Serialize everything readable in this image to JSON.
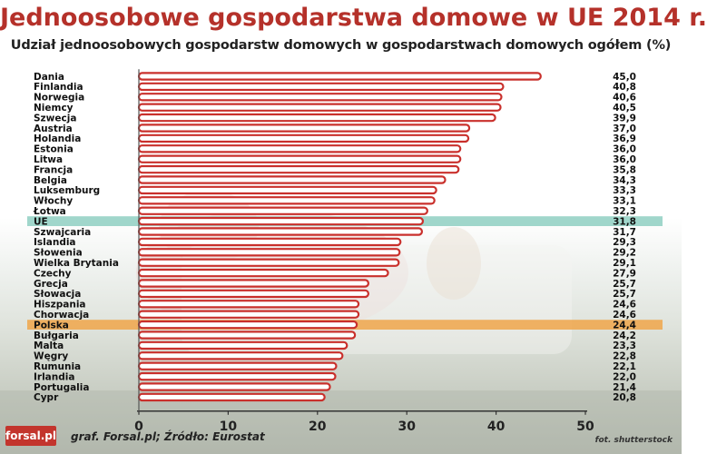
{
  "header": {
    "title": "Jednoosobowe gospodarstwa domowe w UE  2014 r.",
    "subtitle": "Udział jednoosobowych gospodarstw domowych w gospodarstwach domowych ogółem (%)"
  },
  "footer": {
    "logo": "forsal.pl",
    "source": "graf. Forsal.pl; Źródło: Eurostat",
    "photo_credit": "fot. shutterstock"
  },
  "colors": {
    "bar_outline": "#c9302c",
    "bar_fill": "#ffffff",
    "title": "#b5312a",
    "highlight_ue": "#8fcfc2",
    "highlight_polska": "#f0a64a"
  },
  "chart_data": {
    "type": "bar",
    "orientation": "horizontal",
    "categories": [
      "Dania",
      "Finlandia",
      "Norwegia",
      "Niemcy",
      "Szwecja",
      "Austria",
      "Holandia",
      "Estonia",
      "Litwa",
      "Francja",
      "Belgia",
      "Luksemburg",
      "Włochy",
      "Łotwa",
      "UE",
      "Szwajcaria",
      "Islandia",
      "Słowenia",
      "Wielka Brytania",
      "Czechy",
      "Grecja",
      "Słowacja",
      "Hiszpania",
      "Chorwacja",
      "Polska",
      "Bułgaria",
      "Malta",
      "Węgry",
      "Rumunia",
      "Irlandia",
      "Portugalia",
      "Cypr"
    ],
    "values": [
      45.0,
      40.8,
      40.6,
      40.5,
      39.9,
      37.0,
      36.9,
      36.0,
      36.0,
      35.8,
      34.3,
      33.3,
      33.1,
      32.3,
      31.8,
      31.7,
      29.3,
      29.2,
      29.1,
      27.9,
      25.7,
      25.7,
      24.6,
      24.6,
      24.4,
      24.2,
      23.3,
      22.8,
      22.1,
      22.0,
      21.4,
      20.8
    ],
    "value_labels": [
      "45,0",
      "40,8",
      "40,6",
      "40,5",
      "39,9",
      "37,0",
      "36,9",
      "36,0",
      "36,0",
      "35,8",
      "34,3",
      "33,3",
      "33,1",
      "32,3",
      "31,8",
      "31,7",
      "29,3",
      "29,2",
      "29,1",
      "27,9",
      "25,7",
      "25,7",
      "24,6",
      "24,6",
      "24,4",
      "24,2",
      "23,3",
      "22,8",
      "22,1",
      "22,0",
      "21,4",
      "20,8"
    ],
    "highlighted": {
      "UE": "highlight_ue",
      "Polska": "highlight_polska"
    },
    "xlim": [
      0,
      50
    ],
    "xticks": [
      "0",
      "10",
      "20",
      "30",
      "40",
      "50"
    ],
    "grid": false
  }
}
